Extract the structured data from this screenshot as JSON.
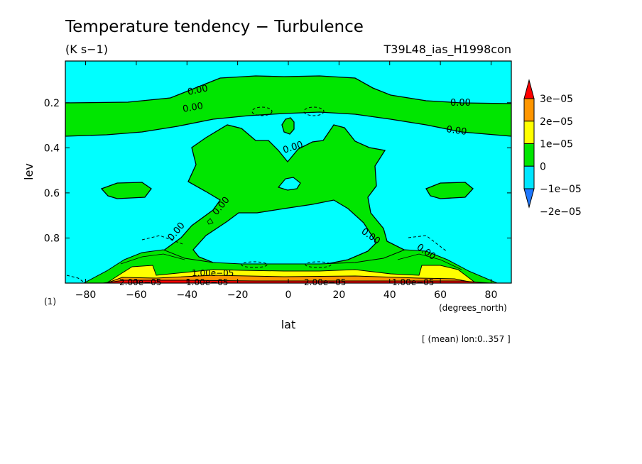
{
  "chart_data": {
    "type": "heatmap",
    "title": "Temperature tendency − Turbulence",
    "units": "(K s−1)",
    "run_name": "T39L48_ias_H1998con",
    "xlabel": "lat",
    "xunits": "(degrees_north)",
    "ylabel": "lev",
    "yunits": "(1)",
    "xlim": [
      -88,
      88
    ],
    "ylim": [
      0.015,
      1.0
    ],
    "x_ticks": [
      {
        "value": -80,
        "label": "−80"
      },
      {
        "value": -60,
        "label": "−60"
      },
      {
        "value": -40,
        "label": "−40"
      },
      {
        "value": -20,
        "label": "−20"
      },
      {
        "value": 0,
        "label": "0"
      },
      {
        "value": 20,
        "label": "20"
      },
      {
        "value": 40,
        "label": "40"
      },
      {
        "value": 60,
        "label": "60"
      },
      {
        "value": 80,
        "label": "80"
      }
    ],
    "y_ticks": [
      {
        "value": 0.2,
        "label": "0.2"
      },
      {
        "value": 0.4,
        "label": "0.4"
      },
      {
        "value": 0.6,
        "label": "0.6"
      },
      {
        "value": 0.8,
        "label": "0.8"
      }
    ],
    "colorbar": {
      "levels": [
        {
          "label": "3e−05",
          "value": 3e-05
        },
        {
          "label": "2e−05",
          "value": 2e-05
        },
        {
          "label": "1e−05",
          "value": 1e-05
        },
        {
          "label": "0",
          "value": 0
        },
        {
          "label": "−1e−05",
          "value": -1e-05
        },
        {
          "label": "−2e−05",
          "value": -2e-05
        }
      ],
      "colors": [
        "#1e78ff",
        "#00e6ff",
        "#00e600",
        "#ffff00",
        "#ff9600",
        "#ff0000"
      ]
    },
    "contour_labels": [
      "0.00",
      "0.00",
      "0.00",
      "0.00",
      "0.00",
      "0.00",
      "0.00",
      "0.00",
      "0.00",
      "1.00e−05",
      "2.00e−05",
      "1.00e−05",
      "2.00e−05",
      "1.00e−05"
    ],
    "note": "[ (mean) lon:0..357 ]"
  }
}
